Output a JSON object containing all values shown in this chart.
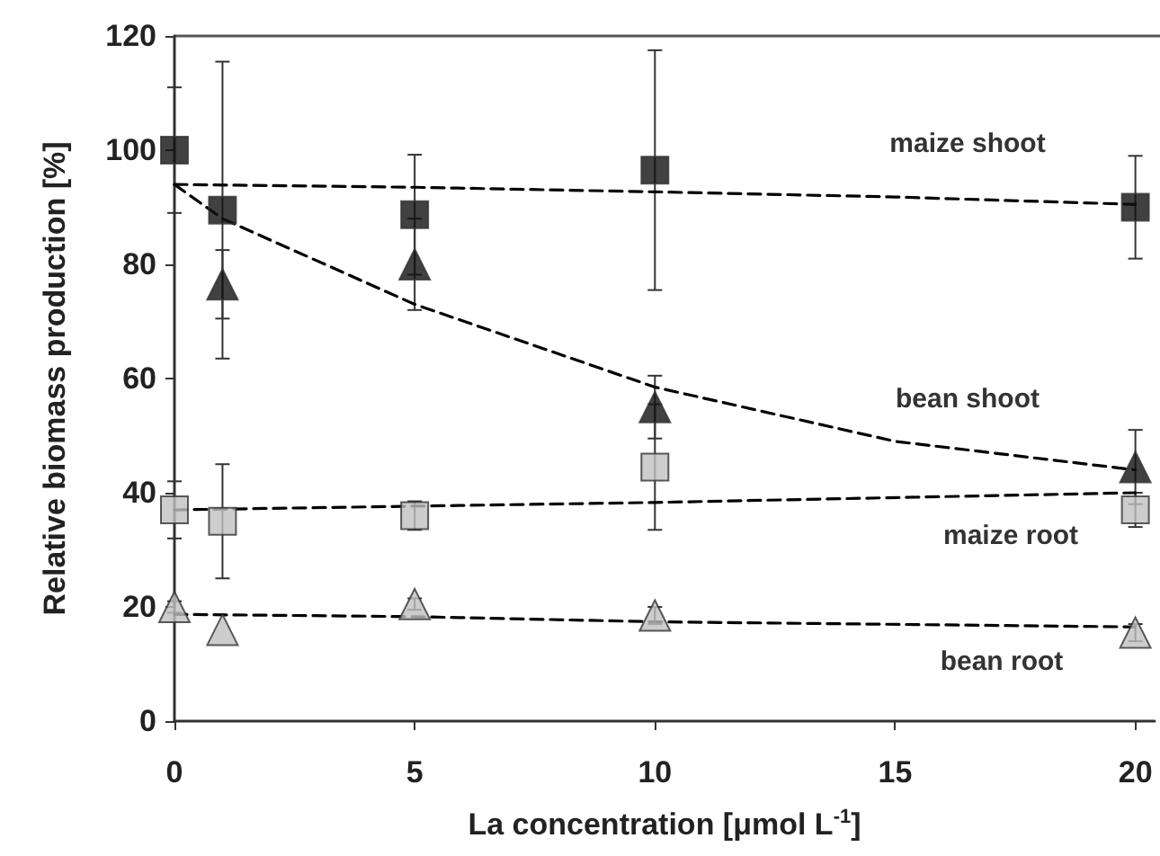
{
  "chart_data": {
    "type": "scatter",
    "xlabel": "La concentration [μmol L$^{-1}$]",
    "ylabel": "Relative biomass production [%]",
    "x": [
      0,
      1,
      5,
      10,
      20
    ],
    "xlim": [
      0,
      20.4
    ],
    "xticks": [
      0,
      5,
      10,
      15,
      20
    ],
    "ylim": [
      0,
      120
    ],
    "yticks": [
      0,
      20,
      40,
      60,
      80,
      100,
      120
    ],
    "grid": false,
    "series": [
      {
        "color": "#111111",
        "marker": "square",
        "values": [
          100,
          89.5,
          88.7,
          96.5,
          90
        ],
        "errors": [
          11,
          26,
          10.5,
          21,
          9
        ]
      },
      {
        "color": "#111111",
        "marker": "triangle",
        "values": [
          null,
          76.5,
          80,
          55,
          44.5
        ],
        "errors": [
          null,
          6,
          8,
          5.5,
          6.5
        ]
      },
      {
        "color": "#c0c0c0",
        "marker": "square",
        "values": [
          37,
          35,
          36,
          44.5,
          37
        ],
        "errors": [
          5,
          10,
          2.5,
          11,
          3
        ]
      },
      {
        "color": "#c0c0c0",
        "marker": "triangle",
        "values": [
          20,
          16,
          20.5,
          18.5,
          15.5
        ],
        "errors": [
          1,
          null,
          1,
          1.5,
          1.5
        ]
      },
      {
        "type": "line",
        "color": "#000000",
        "marker": "none",
        "line_style": "dashed",
        "x": [
          0,
          5,
          10,
          15,
          20
        ],
        "values": [
          94,
          93.5,
          92.7,
          91.8,
          90.5
        ]
      },
      {
        "type": "line",
        "color": "#000000",
        "marker": "none",
        "line_style": "dashed",
        "x": [
          0,
          1,
          5,
          10,
          15,
          20
        ],
        "values": [
          94,
          88,
          73,
          58.5,
          49,
          44
        ]
      },
      {
        "type": "line",
        "color": "#000000",
        "marker": "none",
        "line_style": "dashed",
        "x": [
          0,
          10,
          20
        ],
        "values": [
          37,
          38.3,
          40
        ]
      },
      {
        "type": "line",
        "color": "#000000",
        "marker": "none",
        "line_style": "dashed",
        "x": [
          0,
          5,
          10,
          20
        ],
        "values": [
          18.7,
          18.3,
          17.4,
          16.5
        ]
      }
    ],
    "annotations": [
      "maize shoot",
      "bean shoot",
      "maize root",
      "bean root"
    ]
  }
}
